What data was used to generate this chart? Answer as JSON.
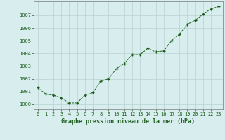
{
  "x": [
    0,
    1,
    2,
    3,
    4,
    5,
    6,
    7,
    8,
    9,
    10,
    11,
    12,
    13,
    14,
    15,
    16,
    17,
    18,
    19,
    20,
    21,
    22,
    23
  ],
  "y": [
    1001.3,
    1000.8,
    1000.7,
    1000.5,
    1000.1,
    1000.1,
    1000.7,
    1000.9,
    1001.8,
    1002.0,
    1002.8,
    1003.2,
    1003.9,
    1003.9,
    1004.4,
    1004.1,
    1004.2,
    1005.0,
    1005.5,
    1006.3,
    1006.6,
    1007.1,
    1007.5,
    1007.7
  ],
  "line_color": "#1a5c1a",
  "marker_color": "#1a5c1a",
  "bg_color": "#d8eeee",
  "grid_color": "#b8d0d0",
  "xlabel": "Graphe pression niveau de la mer (hPa)",
  "xlabel_color": "#1a5c1a",
  "tick_label_color": "#1a5c1a",
  "ylim": [
    999.6,
    1008.1
  ],
  "yticks": [
    1000,
    1001,
    1002,
    1003,
    1004,
    1005,
    1006,
    1007
  ],
  "xticks": [
    0,
    1,
    2,
    3,
    4,
    5,
    6,
    7,
    8,
    9,
    10,
    11,
    12,
    13,
    14,
    15,
    16,
    17,
    18,
    19,
    20,
    21,
    22,
    23
  ],
  "tick_fontsize": 5.0,
  "xlabel_fontsize": 6.0,
  "xlim": [
    -0.5,
    23.5
  ]
}
